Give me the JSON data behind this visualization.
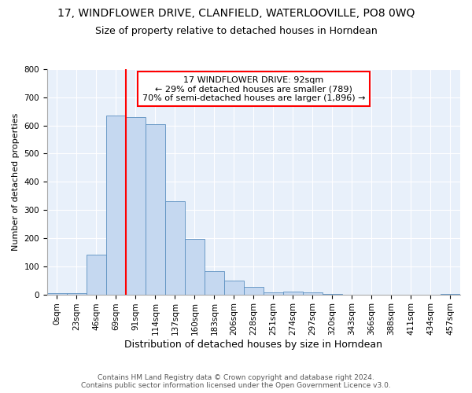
{
  "title": "17, WINDFLOWER DRIVE, CLANFIELD, WATERLOOVILLE, PO8 0WQ",
  "subtitle": "Size of property relative to detached houses in Horndean",
  "xlabel": "Distribution of detached houses by size in Horndean",
  "ylabel": "Number of detached properties",
  "bar_color": "#c5d8f0",
  "bar_edge_color": "#5a8fc0",
  "background_color": "#e8f0fa",
  "grid_color": "#ffffff",
  "categories": [
    "0sqm",
    "23sqm",
    "46sqm",
    "69sqm",
    "91sqm",
    "114sqm",
    "137sqm",
    "160sqm",
    "183sqm",
    "206sqm",
    "228sqm",
    "251sqm",
    "274sqm",
    "297sqm",
    "320sqm",
    "343sqm",
    "366sqm",
    "388sqm",
    "411sqm",
    "434sqm",
    "457sqm"
  ],
  "values": [
    5,
    5,
    140,
    635,
    630,
    605,
    330,
    197,
    83,
    48,
    28,
    8,
    10,
    8,
    2,
    0,
    0,
    0,
    0,
    0,
    2
  ],
  "ylim": [
    0,
    800
  ],
  "yticks": [
    0,
    100,
    200,
    300,
    400,
    500,
    600,
    700,
    800
  ],
  "annotation_title": "17 WINDFLOWER DRIVE: 92sqm",
  "annotation_line1": "← 29% of detached houses are smaller (789)",
  "annotation_line2": "70% of semi-detached houses are larger (1,896) →",
  "footnote1": "Contains HM Land Registry data © Crown copyright and database right 2024.",
  "footnote2": "Contains public sector information licensed under the Open Government Licence v3.0.",
  "title_fontsize": 10,
  "subtitle_fontsize": 9,
  "ylabel_fontsize": 8,
  "xlabel_fontsize": 9,
  "tick_fontsize": 7.5,
  "footnote_fontsize": 6.5
}
